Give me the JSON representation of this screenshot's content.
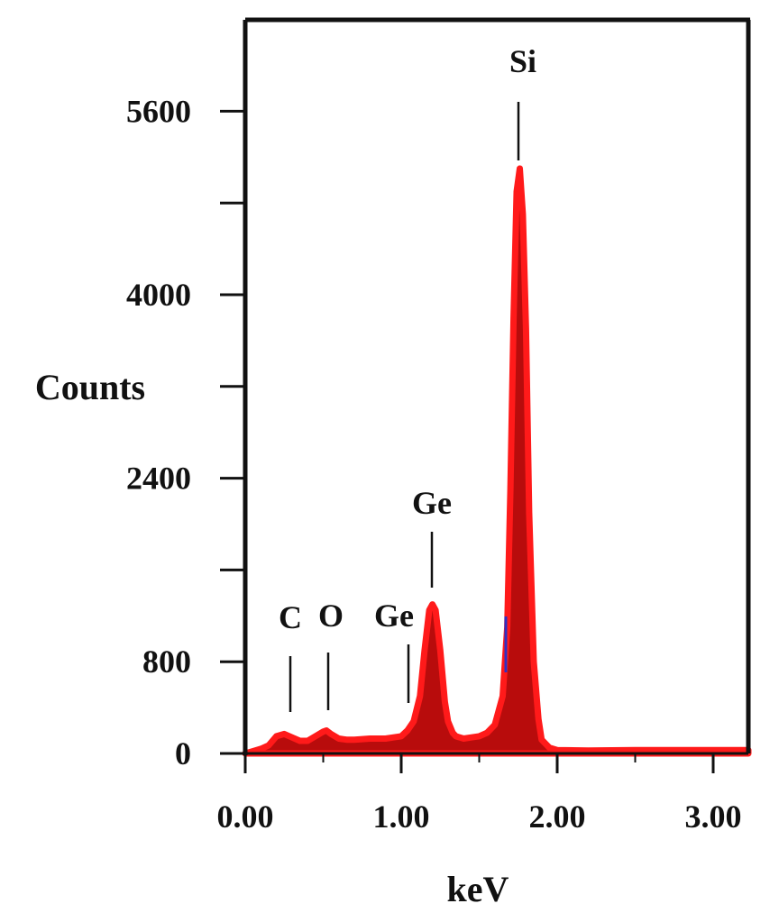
{
  "colors": {
    "spectrum_fill": "#b80c0c",
    "spectrum_edge": "#ff1a1a",
    "axis": "#111111",
    "marker": "#3030c0"
  },
  "chart_data": {
    "type": "area",
    "title": "",
    "xlabel": "keV",
    "ylabel": "Counts",
    "xlim": [
      0.0,
      3.25
    ],
    "ylim": [
      0,
      6400
    ],
    "x_ticks": [
      0.0,
      1.0,
      2.0,
      3.0
    ],
    "x_tick_labels": [
      "0.00",
      "1.00",
      "2.00",
      "3.00"
    ],
    "y_ticks": [
      0,
      800,
      1600,
      2400,
      3200,
      4000,
      4800,
      5600
    ],
    "y_tick_labels": [
      "0",
      "800",
      "",
      "2400",
      "",
      "4000",
      "",
      "5600"
    ],
    "grid": false,
    "legend": "none",
    "series": [
      {
        "x": [
          0.0,
          0.05,
          0.1,
          0.15,
          0.2,
          0.25,
          0.3,
          0.35,
          0.4,
          0.45,
          0.5,
          0.52,
          0.55,
          0.6,
          0.65,
          0.7,
          0.8,
          0.9,
          0.95,
          1.0,
          1.04,
          1.08,
          1.12,
          1.15,
          1.18,
          1.2,
          1.22,
          1.25,
          1.28,
          1.3,
          1.33,
          1.35,
          1.4,
          1.45,
          1.5,
          1.55,
          1.6,
          1.65,
          1.68,
          1.7,
          1.72,
          1.74,
          1.76,
          1.78,
          1.8,
          1.82,
          1.85,
          1.88,
          1.9,
          1.95,
          2.0,
          2.2,
          2.5,
          2.8,
          3.0,
          3.25
        ],
        "y": [
          0,
          20,
          40,
          70,
          150,
          170,
          140,
          110,
          110,
          150,
          190,
          200,
          170,
          130,
          120,
          120,
          130,
          130,
          140,
          150,
          200,
          280,
          500,
          900,
          1250,
          1300,
          1250,
          900,
          450,
          280,
          180,
          150,
          130,
          140,
          150,
          180,
          250,
          500,
          1100,
          2300,
          3800,
          4900,
          5100,
          4700,
          3700,
          2100,
          800,
          300,
          120,
          50,
          30,
          25,
          30,
          30,
          30,
          30
        ]
      }
    ],
    "peak_labels": [
      {
        "text": "C",
        "x": 0.28
      },
      {
        "text": "O",
        "x": 0.53
      },
      {
        "text": "Ge",
        "x": 1.04
      },
      {
        "text": "Ge",
        "x": 1.19
      },
      {
        "text": "Si",
        "x": 1.75
      }
    ]
  }
}
